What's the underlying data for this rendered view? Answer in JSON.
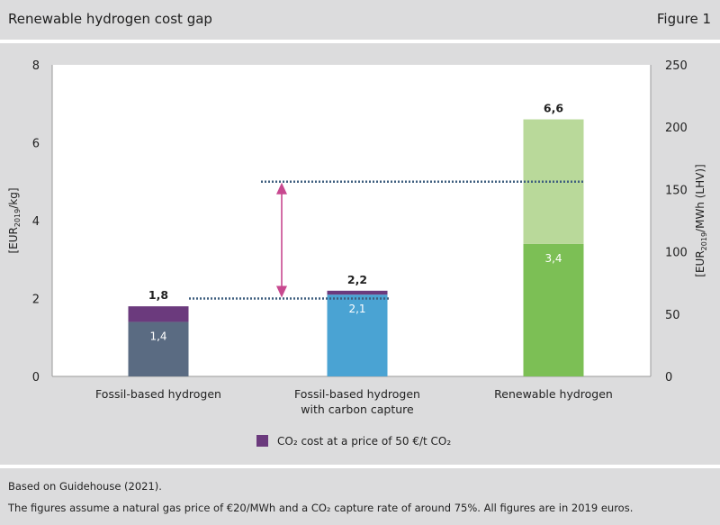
{
  "header": {
    "title": "Renewable hydrogen cost gap",
    "figure_label": "Figure 1"
  },
  "footer": {
    "source": "Based on Guidehouse (2021).",
    "note": "The figures assume a natural gas price of €20/MWh and a CO₂ capture rate of around 75%. All figures are in 2019 euros."
  },
  "chart_data": {
    "type": "bar",
    "stacked": true,
    "categories": [
      "Fossil-based hydrogen",
      "Fossil-based hydrogen with carbon capture",
      "Renewable hydrogen"
    ],
    "category_lines": [
      [
        "Fossil-based hydrogen"
      ],
      [
        "Fossil-based hydrogen",
        "with carbon capture"
      ],
      [
        "Renewable hydrogen"
      ]
    ],
    "bars": [
      {
        "total": 1.8,
        "total_label": "1,8",
        "segments": [
          {
            "value": 1.4,
            "label": "1,4",
            "color": "#5a6b82"
          },
          {
            "value": 0.4,
            "label": "",
            "color": "#6b3a7d"
          }
        ]
      },
      {
        "total": 2.2,
        "total_label": "2,2",
        "segments": [
          {
            "value": 2.1,
            "label": "2,1",
            "color": "#4aa3d3"
          },
          {
            "value": 0.1,
            "label": "",
            "color": "#6b3a7d"
          }
        ]
      },
      {
        "total": 6.6,
        "total_label": "6,6",
        "segments": [
          {
            "value": 3.4,
            "label": "3,4",
            "color": "#7cbf55"
          },
          {
            "value": 3.2,
            "label": "",
            "color": "#b9d99a"
          }
        ]
      }
    ],
    "y_left": {
      "label": "[EUR2019/kg]",
      "ylim": [
        0,
        8
      ],
      "ticks": [
        0,
        2,
        4,
        6,
        8
      ]
    },
    "y_right": {
      "label": "[EUR2019/MWh (LHV)]",
      "ylim": [
        0,
        250
      ],
      "ticks": [
        0,
        50,
        100,
        150,
        200,
        250
      ]
    },
    "reference_lines": [
      {
        "y": 2.0,
        "from_category": 0,
        "to_category": 1,
        "color": "#3f5f7f"
      },
      {
        "y": 5.0,
        "from_category": 1,
        "to_category": 2,
        "color": "#3f5f7f"
      }
    ],
    "gap_arrow": {
      "from": 2.0,
      "to": 5.0,
      "color": "#c8488f"
    },
    "legend": {
      "position": "bottom-center",
      "label": "CO₂ cost at a price of 50 €/t CO₂",
      "color": "#6b3a7d"
    },
    "grid": false
  }
}
